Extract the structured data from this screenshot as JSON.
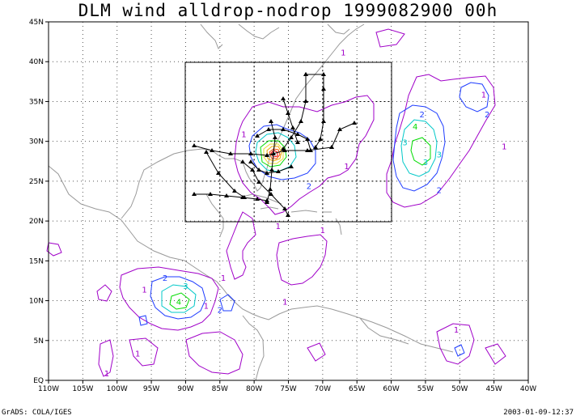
{
  "title": "DLM wind alldrop-nodrop 1999082900 00h",
  "footer": {
    "left": "GrADS: COLA/IGES",
    "right": "2003-01-09-12:37"
  },
  "map": {
    "lon_ticks": [
      "110W",
      "105W",
      "100W",
      "95W",
      "90W",
      "85W",
      "80W",
      "75W",
      "70W",
      "65W",
      "60W",
      "55W",
      "50W",
      "45W",
      "40W"
    ],
    "lat_ticks": [
      "EQ",
      "5N",
      "10N",
      "15N",
      "20N",
      "25N",
      "30N",
      "35N",
      "40N",
      "45N"
    ],
    "lon_range": [
      -110,
      -40
    ],
    "lat_range": [
      0,
      45
    ],
    "inset_box": {
      "lon": [
        -90,
        -60
      ],
      "lat": [
        20,
        40
      ]
    },
    "contour_labels": [
      {
        "text": "1",
        "lon": -81.5,
        "lat": 30.5,
        "color": "#a000c8"
      },
      {
        "text": "2",
        "lon": -72,
        "lat": 24,
        "color": "#1e3cff"
      },
      {
        "text": "1",
        "lon": -66.5,
        "lat": 26.5,
        "color": "#a000c8"
      },
      {
        "text": "2",
        "lon": -55.5,
        "lat": 33,
        "color": "#1e3cff"
      },
      {
        "text": "4",
        "lon": -56.5,
        "lat": 31.5,
        "color": "#00dc00"
      },
      {
        "text": "3",
        "lon": -58,
        "lat": 29.5,
        "color": "#00c8c8"
      },
      {
        "text": "3",
        "lon": -53,
        "lat": 28,
        "color": "#00c8c8"
      },
      {
        "text": "3",
        "lon": -55,
        "lat": 27,
        "color": "#00c8c8"
      },
      {
        "text": "2",
        "lon": -53,
        "lat": 23.5,
        "color": "#1e3cff"
      },
      {
        "text": "2",
        "lon": -46,
        "lat": 33,
        "color": "#1e3cff"
      },
      {
        "text": "1",
        "lon": -43.5,
        "lat": 29,
        "color": "#a000c8"
      },
      {
        "text": "1",
        "lon": -46.5,
        "lat": 35.5,
        "color": "#a000c8"
      },
      {
        "text": "1",
        "lon": -67,
        "lat": 40.8,
        "color": "#a000c8"
      },
      {
        "text": "1",
        "lon": -76.5,
        "lat": 19,
        "color": "#a000c8"
      },
      {
        "text": "1",
        "lon": -70,
        "lat": 18.5,
        "color": "#a000c8"
      },
      {
        "text": "2",
        "lon": -93,
        "lat": 12.5,
        "color": "#1e3cff"
      },
      {
        "text": "3",
        "lon": -90,
        "lat": 11.5,
        "color": "#00c8c8"
      },
      {
        "text": "4",
        "lon": -91,
        "lat": 9.5,
        "color": "#00dc00"
      },
      {
        "text": "1",
        "lon": -96,
        "lat": 11,
        "color": "#a000c8"
      },
      {
        "text": "1",
        "lon": -87,
        "lat": 9,
        "color": "#a000c8"
      },
      {
        "text": "2",
        "lon": -85,
        "lat": 8.5,
        "color": "#1e3cff"
      },
      {
        "text": "1",
        "lon": -84.5,
        "lat": 12.5,
        "color": "#a000c8"
      },
      {
        "text": "1",
        "lon": -97,
        "lat": 3,
        "color": "#a000c8"
      },
      {
        "text": "1",
        "lon": -101.5,
        "lat": 0.5,
        "color": "#a000c8"
      },
      {
        "text": "1",
        "lon": -50.5,
        "lat": 6,
        "color": "#a000c8"
      },
      {
        "text": "1",
        "lon": -75.5,
        "lat": 9.5,
        "color": "#a000c8"
      }
    ]
  }
}
